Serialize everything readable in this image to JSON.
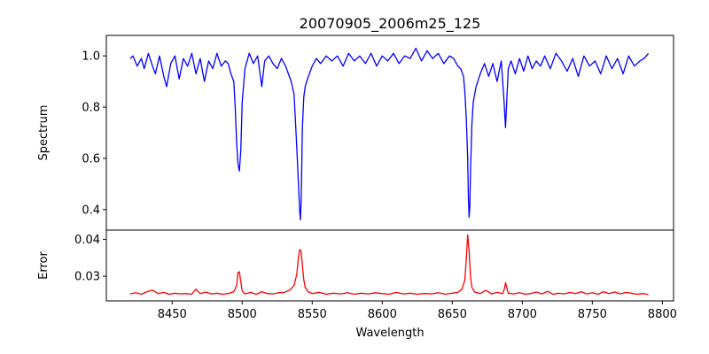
{
  "chart_data": [
    {
      "type": "line",
      "title": "20070905_2006m25_125",
      "xlabel": "",
      "ylabel": "Spectrum",
      "xlim": [
        8403,
        8808
      ],
      "ylim": [
        0.32,
        1.08
      ],
      "yticks": [
        0.4,
        0.6,
        0.8,
        1.0
      ],
      "ytick_labels": [
        "0.4",
        "0.6",
        "0.8",
        "1.0"
      ],
      "series": [
        {
          "color": "#0000ff",
          "x": [
            8420,
            8422,
            8425,
            8428,
            8430,
            8433,
            8436,
            8438,
            8441,
            8444,
            8446,
            8449,
            8452,
            8455,
            8458,
            8461,
            8464,
            8467,
            8470,
            8473,
            8476,
            8479,
            8482,
            8485,
            8488,
            8490,
            8492,
            8494,
            8495,
            8496,
            8497,
            8498,
            8499,
            8500,
            8502,
            8505,
            8508,
            8511,
            8514,
            8516,
            8519,
            8522,
            8525,
            8528,
            8531,
            8533,
            8535,
            8537,
            8538,
            8539,
            8540,
            8541,
            8541.5,
            8542,
            8542.5,
            8543,
            8544,
            8545,
            8546,
            8548,
            8550,
            8553,
            8556,
            8560,
            8564,
            8568,
            8572,
            8576,
            8580,
            8584,
            8588,
            8592,
            8596,
            8600,
            8604,
            8608,
            8612,
            8616,
            8620,
            8624,
            8628,
            8632,
            8636,
            8640,
            8644,
            8648,
            8651,
            8654,
            8656,
            8658,
            8659,
            8660,
            8661,
            8661.5,
            8662,
            8662.5,
            8663,
            8664,
            8665,
            8667,
            8670,
            8673,
            8676,
            8679,
            8682,
            8685,
            8686,
            8687,
            8688,
            8689,
            8690,
            8692,
            8695,
            8698,
            8701,
            8704,
            8707,
            8710,
            8713,
            8716,
            8720,
            8724,
            8728,
            8732,
            8736,
            8740,
            8744,
            8748,
            8752,
            8756,
            8760,
            8764,
            8768,
            8772,
            8776,
            8780,
            8784,
            8787,
            8790
          ],
          "y": [
            0.99,
            1.0,
            0.96,
            0.99,
            0.95,
            1.01,
            0.96,
            0.93,
            1.0,
            0.92,
            0.88,
            0.97,
            1.0,
            0.91,
            0.99,
            0.96,
            1.01,
            0.93,
            0.99,
            0.9,
            0.98,
            0.95,
            1.01,
            0.96,
            0.98,
            0.97,
            0.93,
            0.9,
            0.8,
            0.66,
            0.58,
            0.55,
            0.63,
            0.82,
            0.95,
            1.01,
            0.97,
            1.0,
            0.88,
            0.98,
            1.0,
            0.97,
            0.95,
            0.99,
            0.96,
            0.93,
            0.9,
            0.85,
            0.75,
            0.64,
            0.52,
            0.4,
            0.36,
            0.42,
            0.55,
            0.72,
            0.84,
            0.88,
            0.9,
            0.93,
            0.96,
            0.99,
            0.97,
            1.0,
            0.98,
            1.0,
            0.96,
            1.01,
            0.98,
            1.0,
            0.97,
            1.01,
            0.96,
            1.0,
            0.98,
            1.01,
            0.97,
            1.0,
            0.99,
            1.03,
            0.98,
            1.02,
            0.99,
            1.01,
            0.97,
            1.0,
            0.99,
            0.96,
            0.95,
            0.92,
            0.86,
            0.76,
            0.6,
            0.45,
            0.37,
            0.41,
            0.55,
            0.73,
            0.82,
            0.88,
            0.93,
            0.97,
            0.92,
            0.97,
            0.9,
            0.98,
            0.9,
            0.82,
            0.72,
            0.84,
            0.95,
            0.98,
            0.93,
            0.99,
            0.94,
            1.0,
            0.95,
            0.98,
            0.96,
            1.0,
            0.95,
            1.01,
            0.98,
            0.94,
            0.99,
            0.92,
            1.0,
            0.96,
            0.98,
            0.93,
            1.0,
            0.95,
            0.99,
            0.93,
            1.0,
            0.96,
            0.98,
            0.99,
            1.01
          ]
        }
      ]
    },
    {
      "type": "line",
      "title": "",
      "xlabel": "Wavelength",
      "ylabel": "Error",
      "xlim": [
        8403,
        8808
      ],
      "ylim": [
        0.0233,
        0.0425
      ],
      "xticks": [
        8450,
        8500,
        8550,
        8600,
        8650,
        8700,
        8750,
        8800
      ],
      "xtick_labels": [
        "8450",
        "8500",
        "8550",
        "8600",
        "8650",
        "8700",
        "8750",
        "8800"
      ],
      "yticks": [
        0.03,
        0.04
      ],
      "ytick_labels": [
        "0.03",
        "0.04"
      ],
      "series": [
        {
          "color": "#ff0000",
          "x": [
            8420,
            8424,
            8428,
            8432,
            8436,
            8440,
            8444,
            8448,
            8452,
            8456,
            8460,
            8464,
            8467,
            8470,
            8474,
            8478,
            8482,
            8486,
            8490,
            8494,
            8496,
            8497,
            8498,
            8499,
            8500,
            8502,
            8506,
            8510,
            8514,
            8518,
            8522,
            8526,
            8530,
            8534,
            8537,
            8539,
            8540,
            8541,
            8542,
            8543,
            8544,
            8545,
            8547,
            8550,
            8555,
            8560,
            8565,
            8570,
            8575,
            8580,
            8585,
            8590,
            8595,
            8600,
            8605,
            8610,
            8615,
            8620,
            8625,
            8630,
            8635,
            8640,
            8645,
            8650,
            8654,
            8657,
            8659,
            8660,
            8661,
            8662,
            8663,
            8664,
            8666,
            8670,
            8674,
            8678,
            8682,
            8686,
            8687,
            8688,
            8689,
            8690,
            8694,
            8698,
            8702,
            8706,
            8710,
            8714,
            8718,
            8722,
            8726,
            8730,
            8734,
            8738,
            8742,
            8746,
            8750,
            8754,
            8758,
            8762,
            8766,
            8770,
            8774,
            8778,
            8782,
            8786,
            8790
          ],
          "y": [
            0.0252,
            0.0255,
            0.0251,
            0.0258,
            0.0262,
            0.0253,
            0.0256,
            0.0251,
            0.0254,
            0.0252,
            0.0253,
            0.0251,
            0.0265,
            0.0253,
            0.0257,
            0.0252,
            0.0254,
            0.0251,
            0.0253,
            0.0258,
            0.0275,
            0.031,
            0.0312,
            0.0285,
            0.026,
            0.0252,
            0.0256,
            0.0251,
            0.0258,
            0.0253,
            0.0252,
            0.0255,
            0.0256,
            0.0262,
            0.0275,
            0.0305,
            0.0345,
            0.0372,
            0.0368,
            0.033,
            0.029,
            0.027,
            0.0258,
            0.0253,
            0.0256,
            0.0251,
            0.0254,
            0.0252,
            0.0255,
            0.0251,
            0.0254,
            0.0252,
            0.0255,
            0.0253,
            0.0251,
            0.0256,
            0.0252,
            0.0254,
            0.0251,
            0.0253,
            0.0252,
            0.0255,
            0.0251,
            0.0254,
            0.0256,
            0.0265,
            0.029,
            0.0345,
            0.0412,
            0.037,
            0.03,
            0.027,
            0.0257,
            0.0253,
            0.0262,
            0.0252,
            0.0256,
            0.0253,
            0.0263,
            0.0282,
            0.0268,
            0.0254,
            0.0252,
            0.0255,
            0.0251,
            0.0253,
            0.0257,
            0.0252,
            0.0259,
            0.0251,
            0.0254,
            0.0252,
            0.0256,
            0.0253,
            0.0258,
            0.0252,
            0.0255,
            0.0251,
            0.0258,
            0.0253,
            0.0257,
            0.0252,
            0.0256,
            0.0254,
            0.0251,
            0.0253,
            0.025
          ]
        }
      ]
    }
  ]
}
